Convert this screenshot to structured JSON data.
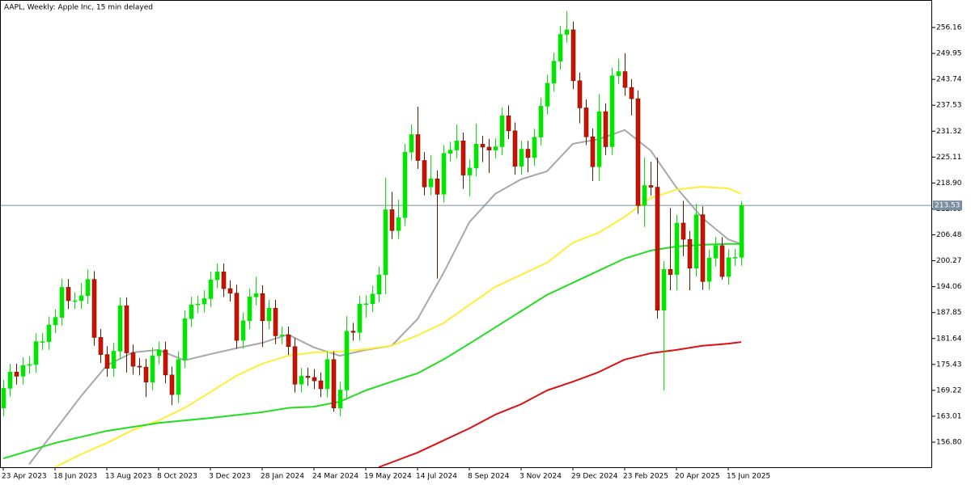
{
  "chart_data": {
    "type": "candlestick",
    "title": "AAPL, Weekly:  Apple Inc, 15 min delayed",
    "categories": [
      "23 Apr 2023",
      null,
      null,
      null,
      null,
      null,
      null,
      null,
      "18 Jun 2023",
      null,
      null,
      null,
      null,
      null,
      null,
      null,
      "13 Aug 2023",
      null,
      null,
      null,
      null,
      null,
      null,
      null,
      "8 Oct 2023",
      null,
      null,
      null,
      null,
      null,
      null,
      null,
      "3 Dec 2023",
      null,
      null,
      null,
      null,
      null,
      null,
      null,
      "28 Jan 2024",
      null,
      null,
      null,
      null,
      null,
      null,
      null,
      "24 Mar 2024",
      null,
      null,
      null,
      null,
      null,
      null,
      null,
      "19 May 2024",
      null,
      null,
      null,
      null,
      null,
      null,
      null,
      "14 Jul 2024",
      null,
      null,
      null,
      null,
      null,
      null,
      null,
      "8 Sep 2024",
      null,
      null,
      null,
      null,
      null,
      null,
      null,
      "3 Nov 2024",
      null,
      null,
      null,
      null,
      null,
      null,
      null,
      "29 Dec 2024",
      null,
      null,
      null,
      null,
      null,
      null,
      null,
      "23 Feb 2025",
      null,
      null,
      null,
      null,
      null,
      null,
      null,
      "20 Apr 2025",
      null,
      null,
      null,
      null,
      null,
      null,
      null,
      "15 Jun 2025",
      null,
      null
    ],
    "open": [
      165.0,
      169.7,
      173.6,
      172.6,
      175.2,
      175.4,
      180.9,
      180.9,
      184.9,
      186.7,
      193.9,
      190.7,
      190.7,
      191.9,
      195.8,
      181.9,
      177.8,
      174.5,
      178.6,
      189.5,
      178.2,
      175.0,
      174.8,
      171.2,
      177.5,
      178.9,
      172.9,
      168.2,
      176.6,
      186.4,
      189.7,
      189.9,
      191.2,
      195.7,
      197.6,
      193.6,
      192.5,
      181.2,
      185.9,
      191.6,
      192.4,
      185.9,
      188.9,
      182.3,
      182.5,
      179.7,
      170.7,
      172.6,
      172.3,
      171.5,
      169.6,
      176.6,
      165.0,
      169.3,
      183.4,
      183.1,
      189.9,
      189.98,
      192.3,
      196.9,
      212.5,
      207.5,
      210.6,
      226.3,
      230.5,
      224.3,
      217.96,
      219.9,
      216.2,
      226.0,
      226.8,
      229.0,
      220.8,
      222.5,
      228.2,
      227.5,
      226.8,
      227.6,
      235.0,
      231.4,
      222.9,
      227.0,
      225.0,
      229.9,
      237.3,
      242.8,
      248.1,
      254.5,
      255.6,
      243.4,
      236.9,
      229.98,
      222.8,
      236.0,
      227.6,
      244.6,
      245.6,
      241.8,
      239.1,
      213.5,
      218.3,
      217.9,
      188.4,
      198.2,
      196.98,
      209.3,
      205.4,
      198.5,
      211.3,
      195.3,
      200.9,
      203.9,
      196.5,
      201.0,
      201.1
    ],
    "high": [
      171.7,
      175.6,
      175.6,
      177.2,
      177.4,
      182.9,
      182.9,
      186.9,
      188.7,
      195.9,
      195.9,
      192.7,
      194.9,
      198.2,
      197.8,
      183.9,
      179.8,
      180.6,
      191.5,
      191.5,
      180.2,
      177.0,
      176.8,
      179.5,
      180.9,
      180.9,
      174.9,
      178.6,
      188.4,
      191.7,
      191.9,
      193.2,
      197.7,
      199.6,
      199.6,
      195.6,
      194.5,
      187.9,
      193.6,
      196.4,
      194.4,
      190.9,
      190.9,
      184.5,
      184.5,
      181.7,
      174.6,
      174.6,
      174.3,
      173.5,
      178.6,
      178.6,
      171.3,
      187.0,
      185.4,
      191.9,
      191.98,
      194.3,
      198.9,
      220.2,
      216.8,
      214.9,
      228.3,
      232.9,
      237.2,
      226.3,
      225.6,
      221.9,
      228.0,
      228.8,
      232.9,
      231.0,
      224.5,
      233.1,
      230.2,
      229.5,
      229.6,
      237.0,
      237.5,
      233.4,
      229.0,
      229.0,
      231.9,
      239.3,
      244.8,
      250.1,
      256.5,
      260.1,
      257.6,
      245.4,
      238.9,
      231.98,
      240.2,
      238.0,
      246.6,
      248.7,
      250.0,
      243.8,
      241.1,
      225.0,
      224.0,
      225.0,
      200.2,
      212.9,
      211.3,
      214.6,
      207.4,
      213.9,
      213.3,
      202.9,
      206.0,
      205.9,
      203.0,
      203.1,
      214.6
    ],
    "low": [
      163.0,
      167.7,
      170.6,
      170.6,
      173.2,
      173.4,
      178.9,
      178.9,
      182.9,
      184.7,
      188.7,
      188.7,
      188.7,
      189.9,
      179.9,
      175.8,
      172.5,
      172.5,
      176.6,
      173.5,
      173.0,
      172.8,
      167.6,
      169.2,
      175.5,
      170.9,
      165.7,
      166.2,
      174.6,
      184.4,
      187.7,
      187.9,
      189.2,
      193.7,
      191.6,
      190.5,
      179.2,
      179.2,
      183.9,
      189.6,
      179.6,
      183.9,
      180.3,
      180.3,
      177.7,
      168.7,
      168.7,
      170.3,
      169.5,
      167.6,
      167.6,
      164.1,
      163.0,
      167.3,
      181.1,
      181.1,
      186.6,
      187.98,
      190.3,
      192.2,
      205.5,
      205.5,
      208.6,
      224.3,
      222.3,
      215.96,
      215.96,
      196.0,
      214.2,
      224.0,
      224.8,
      217.5,
      215.7,
      220.5,
      223.9,
      221.3,
      224.8,
      225.6,
      229.4,
      220.9,
      220.9,
      221.5,
      223.0,
      227.9,
      235.3,
      240.8,
      246.1,
      252.5,
      241.4,
      233.2,
      227.98,
      219.4,
      219.4,
      225.6,
      225.6,
      242.6,
      239.8,
      235.1,
      211.5,
      208.4,
      215.9,
      186.4,
      169.2,
      193.2,
      193.2,
      201.4,
      193.2,
      196.5,
      193.3,
      193.3,
      198.9,
      195.7,
      194.5,
      199.0,
      199.1
    ],
    "close": [
      169.7,
      173.6,
      172.6,
      175.2,
      175.4,
      180.9,
      180.9,
      184.9,
      186.7,
      193.9,
      190.7,
      190.7,
      191.9,
      195.8,
      181.9,
      177.8,
      174.5,
      178.6,
      189.5,
      178.2,
      175.0,
      174.8,
      171.2,
      177.5,
      178.9,
      172.9,
      168.2,
      176.6,
      186.4,
      189.7,
      189.9,
      191.2,
      195.7,
      197.6,
      193.6,
      192.5,
      181.2,
      185.9,
      191.6,
      192.4,
      185.9,
      188.9,
      182.3,
      182.5,
      179.7,
      170.7,
      172.6,
      172.3,
      171.5,
      169.6,
      176.6,
      165.0,
      169.3,
      183.4,
      183.1,
      189.9,
      189.98,
      192.3,
      196.9,
      212.5,
      207.5,
      210.6,
      226.3,
      230.5,
      224.3,
      217.96,
      219.9,
      216.2,
      226.0,
      226.8,
      229.0,
      220.8,
      222.5,
      228.2,
      227.5,
      226.8,
      227.6,
      235.0,
      231.4,
      222.9,
      227.0,
      225.0,
      229.9,
      237.3,
      242.8,
      248.1,
      254.5,
      255.6,
      243.4,
      236.9,
      229.98,
      222.8,
      236.0,
      227.6,
      244.6,
      245.6,
      241.8,
      239.1,
      213.5,
      218.3,
      217.9,
      188.4,
      198.2,
      196.98,
      209.3,
      205.4,
      198.5,
      211.3,
      195.3,
      200.9,
      203.9,
      196.5,
      201.0,
      201.1,
      213.53
    ],
    "up_color": "#00e600",
    "down_color": "#d01000",
    "lines": [
      {
        "color": "#a8a8a8",
        "x": [
          4,
          12,
          16,
          20,
          24,
          28,
          32,
          36,
          40,
          44,
          48,
          52,
          56,
          60,
          64,
          68,
          72,
          76,
          80,
          84,
          88,
          92,
          96,
          100,
          104,
          108,
          112,
          114
        ],
        "values": [
          151.5,
          167.8,
          175.2,
          178.3,
          178.9,
          176.4,
          177.9,
          179.3,
          180.6,
          182.6,
          179.5,
          177.5,
          178.9,
          179.9,
          186.3,
          197.3,
          209.5,
          216.3,
          219.8,
          221.7,
          228.3,
          229.4,
          231.6,
          226.7,
          217.8,
          210.5,
          205.4,
          204.3
        ]
      },
      {
        "color": "#ffee33",
        "x": [
          8,
          12,
          16,
          20,
          24,
          28,
          32,
          36,
          40,
          44,
          48,
          52,
          56,
          60,
          64,
          68,
          72,
          76,
          80,
          84,
          88,
          92,
          96,
          100,
          104,
          108,
          112,
          114
        ],
        "values": [
          150.8,
          153.9,
          156.6,
          159.7,
          162.0,
          165.0,
          168.8,
          172.7,
          175.6,
          177.5,
          178.3,
          178.5,
          179.1,
          179.9,
          182.4,
          185.3,
          189.7,
          194.0,
          196.9,
          199.8,
          204.6,
          207.0,
          210.8,
          215.3,
          217.3,
          218.0,
          217.6,
          216.3
        ]
      },
      {
        "color": "#22dd22",
        "x": [
          0,
          8,
          16,
          24,
          32,
          40,
          44,
          48,
          52,
          56,
          60,
          64,
          68,
          72,
          76,
          80,
          84,
          88,
          92,
          96,
          100,
          104,
          108,
          112,
          114
        ],
        "values": [
          152.9,
          156.6,
          159.5,
          161.4,
          162.6,
          164.0,
          165.0,
          165.3,
          166.5,
          169.2,
          171.3,
          173.3,
          176.6,
          180.4,
          184.3,
          188.2,
          192.1,
          195.0,
          197.9,
          200.8,
          202.7,
          203.7,
          204.1,
          204.3,
          204.3
        ]
      },
      {
        "color": "#dd1111",
        "x": [
          58,
          64,
          68,
          72,
          76,
          80,
          84,
          88,
          92,
          96,
          100,
          104,
          108,
          112,
          114
        ],
        "values": [
          150.8,
          154.3,
          157.2,
          160.1,
          163.4,
          165.9,
          169.2,
          171.3,
          173.6,
          176.6,
          178.1,
          178.9,
          179.9,
          180.4,
          180.8
        ]
      }
    ],
    "last_price": 213.53,
    "ylim": [
      150.8,
      262.75
    ],
    "yticks": [
      256.16,
      249.95,
      243.74,
      237.53,
      231.32,
      225.11,
      {
        "value": 218.9,
        "label": "218.90"
      },
      212.69,
      206.48,
      200.27,
      194.06,
      187.85,
      181.64,
      175.43,
      169.22,
      163.01,
      {
        "value": 156.8,
        "label": "156.80"
      }
    ]
  }
}
